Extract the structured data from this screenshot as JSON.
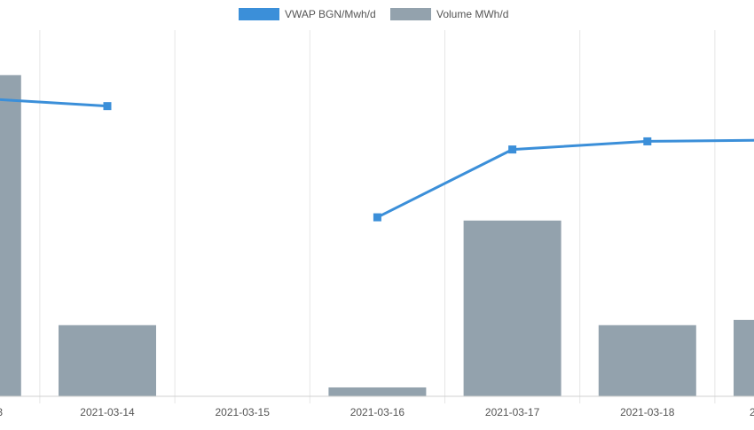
{
  "colors": {
    "vwap": "#3b8fd9",
    "volume": "#93a2ad",
    "grid": "#e6e6e6",
    "axis": "#d0d0d0",
    "tick_text": "#555555",
    "legend_text": "#555555"
  },
  "chart_data": {
    "type": "bar",
    "categories": [
      "3",
      "2021-03-14",
      "2021-03-15",
      "2021-03-16",
      "2021-03-17",
      "2021-03-18",
      "2"
    ],
    "series": [
      {
        "name": "VWAP BGN/Mwh/d",
        "type": "line",
        "values": [
          110,
          107,
          null,
          66,
          91,
          94,
          94.5
        ]
      },
      {
        "name": "Volume MWh/d",
        "type": "bar",
        "values": [
          6140,
          1360,
          0,
          170,
          3360,
          1360,
          1460
        ]
      }
    ],
    "ylim_line": [
      0,
      135
    ],
    "ylim_bar": [
      0,
      7000
    ],
    "grid": true,
    "legend": "top-center"
  }
}
